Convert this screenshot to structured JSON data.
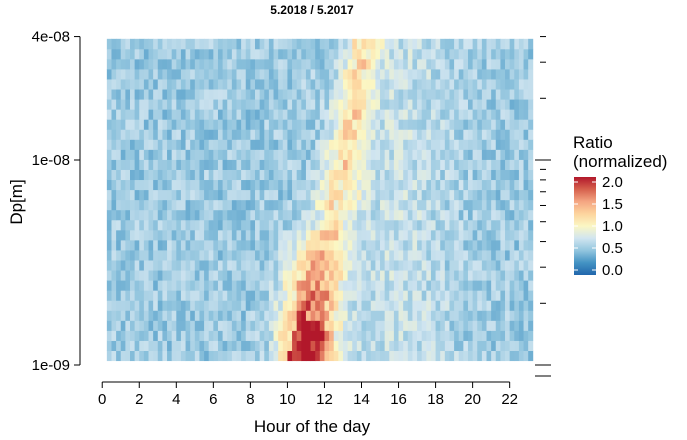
{
  "chart_data": {
    "type": "heatmap",
    "title": "5.2018 / 5.2017",
    "xlabel": "Hour of the day",
    "ylabel": "Dp[m]",
    "x_ticks": [
      "0",
      "2",
      "4",
      "6",
      "8",
      "10",
      "12",
      "14",
      "16",
      "18",
      "20",
      "22"
    ],
    "y_ticks": [
      "4e-08",
      "1e-08",
      "1e-09"
    ],
    "y_scale": "log",
    "xlim": [
      -1.2,
      23.8
    ],
    "x_data_range": [
      0.25,
      23.25
    ],
    "y_data_range": [
      1.05e-09,
      3.9e-08
    ],
    "legend": {
      "title_line1": "Ratio",
      "title_line2": "(normalized)",
      "labels": [
        "2.0",
        "1.5",
        "1.0",
        "0.5",
        "0.0"
      ],
      "range": [
        0,
        2
      ]
    },
    "colorscale": [
      "#2166ac",
      "#4393c3",
      "#92c5de",
      "#d1e5f0",
      "#fbf7c4",
      "#fdd49e",
      "#f4a582",
      "#d6604d",
      "#b2182b"
    ],
    "description_of_pattern": "baseline ratio ~0.5-0.8; increased ratio (>1) band rising from ~9-13 h at small Dp toward ~14 h at larger Dp; ratio up to 2.0 near 10-12 h below 5e-09 m"
  }
}
